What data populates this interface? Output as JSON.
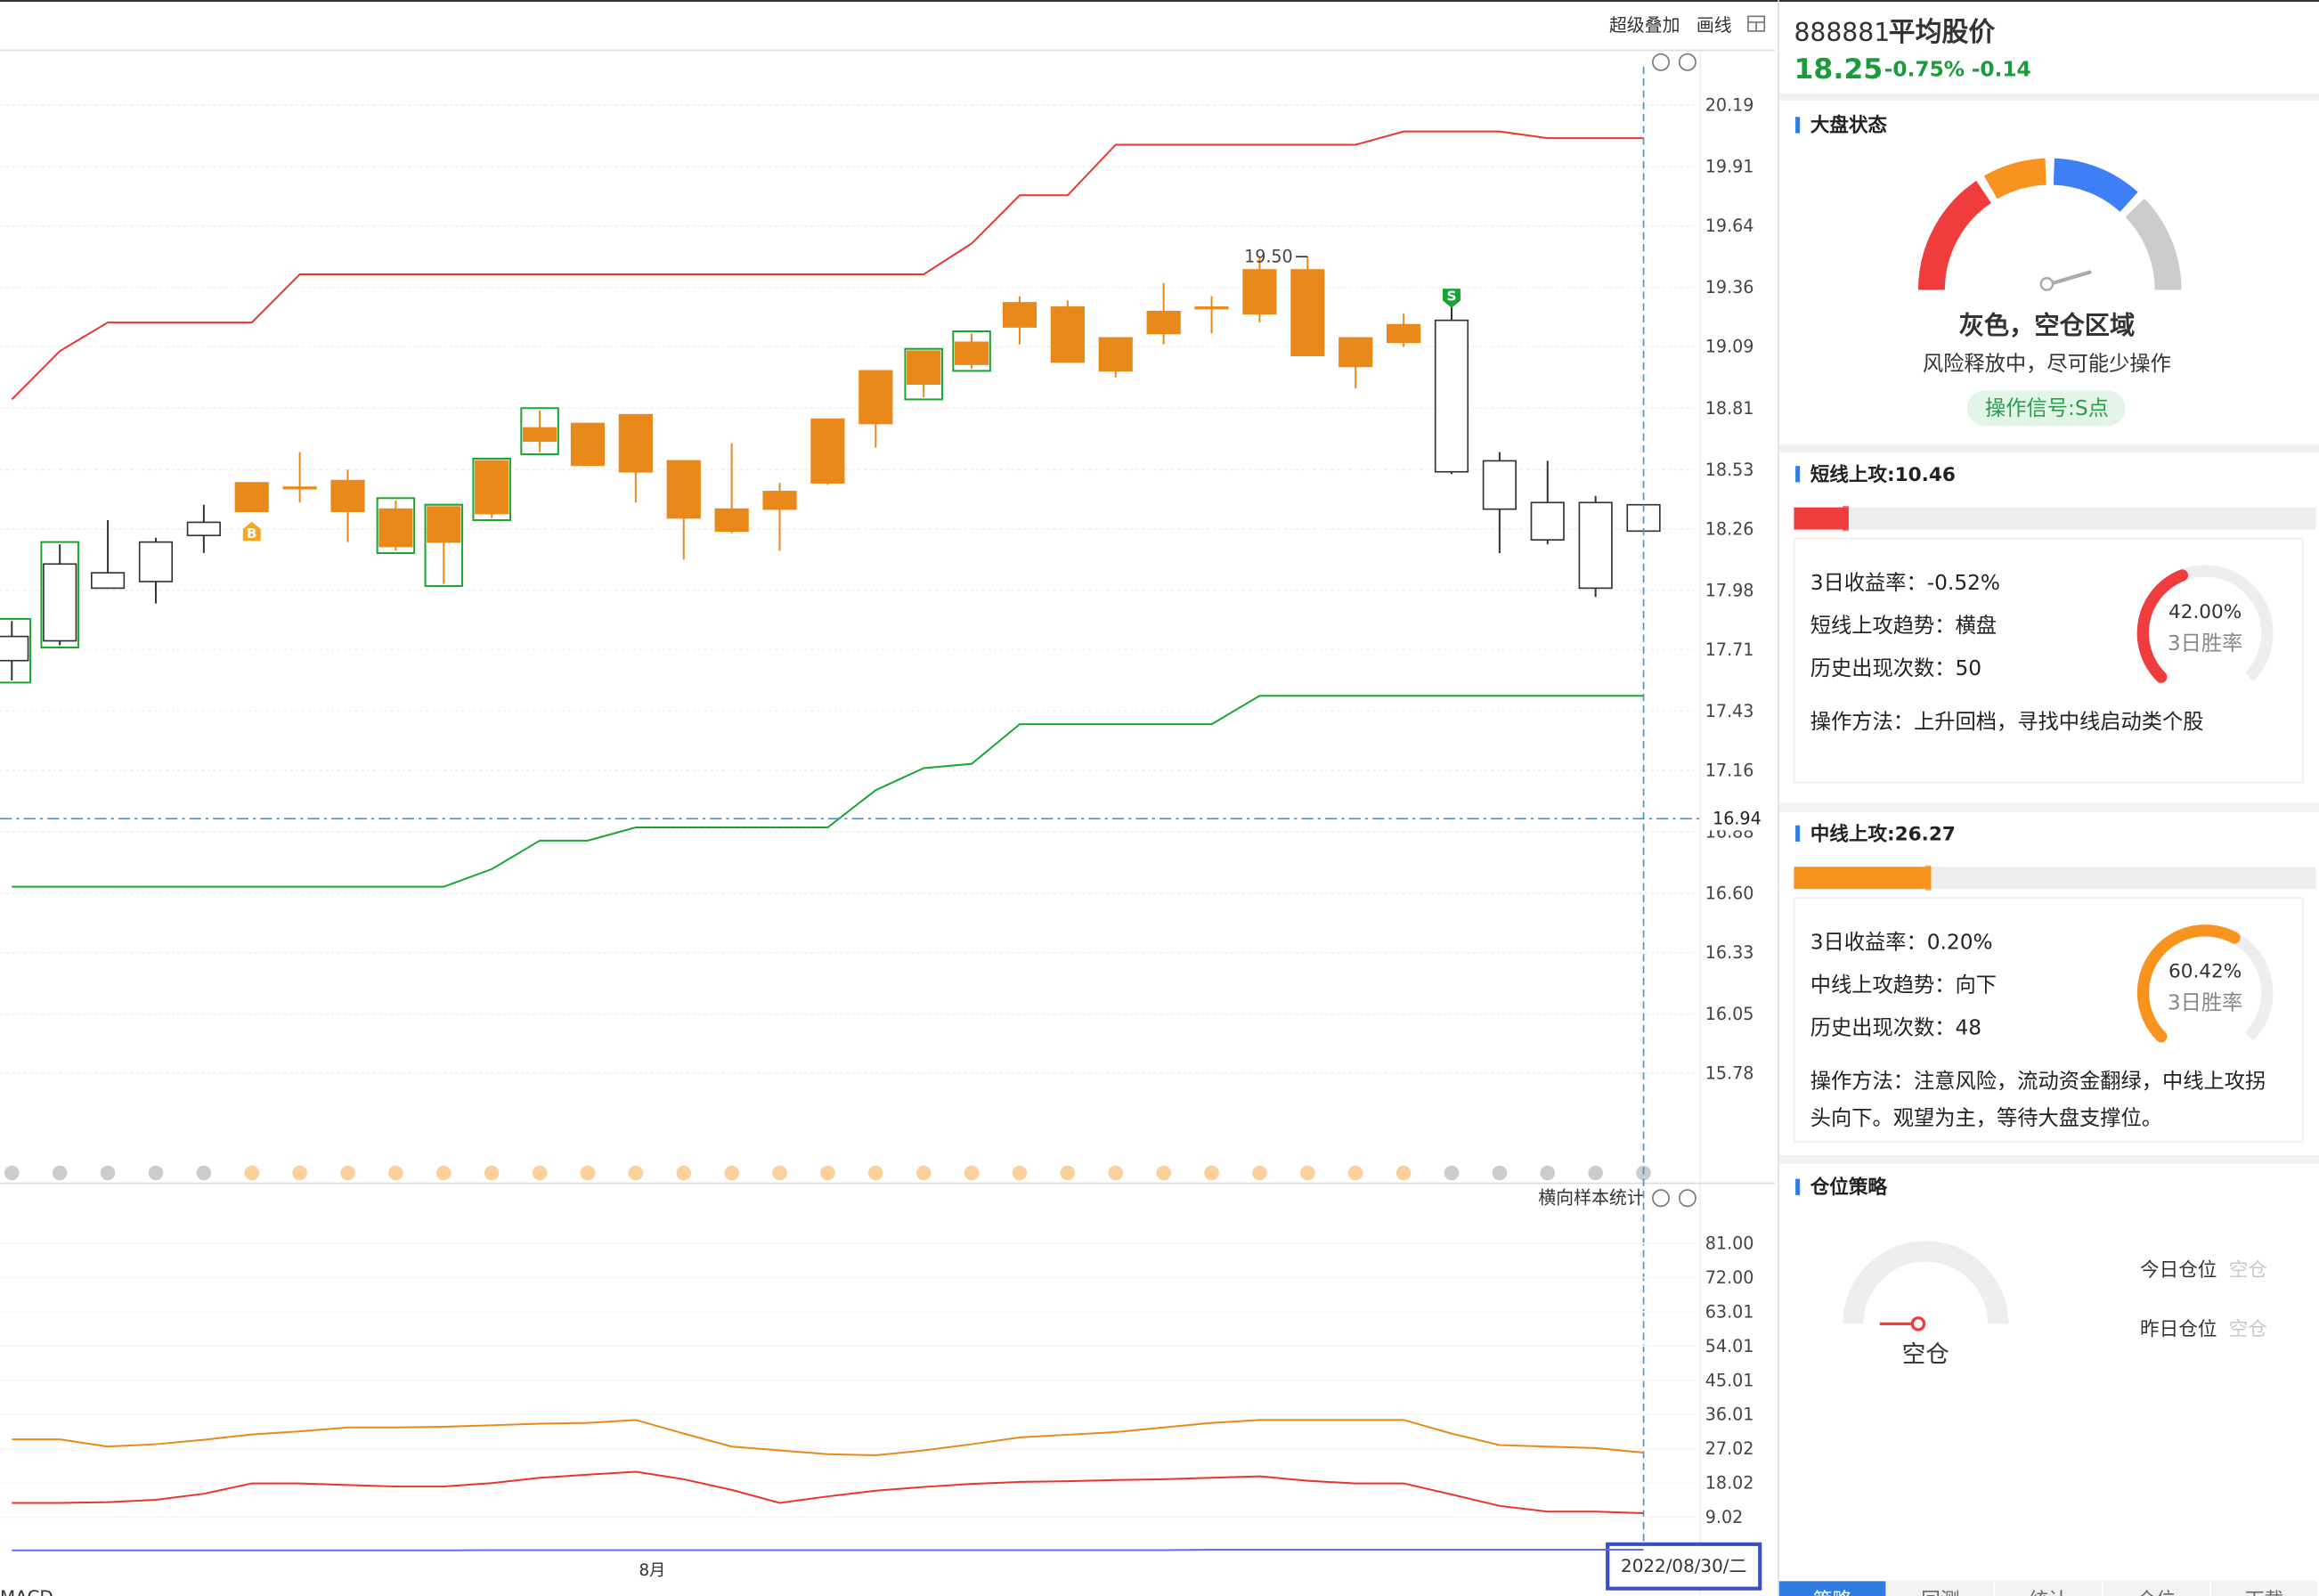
{
  "toolbar": {
    "overlay": "超级叠加",
    "draw": "画线"
  },
  "chart_data": [
    {
      "type": "candlestick",
      "open": [
        17.66,
        17.75,
        17.99,
        18.02,
        18.23,
        18.47,
        18.45,
        18.48,
        18.35,
        18.36,
        18.57,
        18.72,
        18.74,
        18.78,
        18.57,
        18.35,
        18.43,
        18.76,
        18.98,
        19.07,
        19.11,
        19.29,
        19.27,
        19.13,
        19.25,
        19.27,
        19.44,
        19.44,
        19.13,
        19.19,
        19.21,
        18.57,
        18.38,
        17.99,
        18.37
      ],
      "high": [
        17.84,
        18.19,
        18.3,
        18.22,
        18.37,
        18.47,
        18.61,
        18.53,
        18.39,
        18.36,
        18.57,
        18.8,
        18.74,
        18.78,
        18.57,
        18.65,
        18.47,
        18.76,
        18.98,
        19.07,
        19.15,
        19.32,
        19.3,
        19.13,
        19.38,
        19.32,
        19.5,
        19.5,
        19.13,
        19.24,
        19.28,
        18.61,
        18.57,
        18.41,
        18.37
      ],
      "low": [
        17.57,
        17.73,
        17.99,
        17.92,
        18.15,
        18.34,
        18.38,
        18.2,
        18.16,
        18.01,
        18.31,
        18.61,
        18.55,
        18.38,
        18.12,
        18.24,
        18.16,
        18.46,
        18.63,
        18.86,
        18.99,
        19.1,
        19.02,
        18.95,
        19.1,
        19.15,
        19.2,
        19.05,
        18.9,
        19.09,
        18.51,
        18.15,
        18.19,
        17.95,
        18.25
      ],
      "close": [
        17.77,
        18.1,
        18.06,
        18.2,
        18.29,
        18.34,
        18.45,
        18.34,
        18.18,
        18.2,
        18.33,
        18.66,
        18.55,
        18.52,
        18.31,
        18.25,
        18.35,
        18.47,
        18.74,
        18.92,
        19.01,
        19.18,
        19.02,
        18.98,
        19.15,
        19.27,
        19.24,
        19.05,
        19.0,
        19.11,
        18.52,
        18.35,
        18.21,
        18.38,
        18.25
      ],
      "candle_colors": [
        "#ffffff",
        "#ffffff",
        "#ffffff",
        "#ffffff",
        "#ffffff",
        "#e8891a",
        "#e8891a",
        "#e8891a",
        "#e8891a",
        "#e8891a",
        "#e8891a",
        "#e8891a",
        "#e8891a",
        "#e8891a",
        "#e8891a",
        "#e8891a",
        "#e8891a",
        "#e8891a",
        "#e8891a",
        "#e8891a",
        "#e8891a",
        "#e8891a",
        "#e8891a",
        "#e8891a",
        "#e8891a",
        "#e8891a",
        "#e8891a",
        "#e8891a",
        "#e8891a",
        "#e8891a",
        "#ffffff",
        "#ffffff",
        "#ffffff",
        "#ffffff",
        "#ffffff"
      ],
      "boxed": [
        true,
        true,
        false,
        false,
        false,
        false,
        false,
        false,
        true,
        true,
        true,
        true,
        false,
        false,
        false,
        false,
        false,
        false,
        false,
        true,
        true,
        false,
        false,
        false,
        false,
        false,
        false,
        false,
        false,
        false,
        false,
        false,
        false,
        false,
        false
      ],
      "dot_colors": [
        "#cccccc",
        "#cccccc",
        "#cccccc",
        "#cccccc",
        "#cccccc",
        "#fcd09b",
        "#fcd09b",
        "#fcd09b",
        "#fcd09b",
        "#fcd09b",
        "#fcd09b",
        "#fcd09b",
        "#fcd09b",
        "#fcd09b",
        "#fcd09b",
        "#fcd09b",
        "#fcd09b",
        "#fcd09b",
        "#fcd09b",
        "#fcd09b",
        "#fcd09b",
        "#fcd09b",
        "#fcd09b",
        "#fcd09b",
        "#fcd09b",
        "#fcd09b",
        "#fcd09b",
        "#fcd09b",
        "#fcd09b",
        "#fcd09b",
        "#cccccc",
        "#cccccc",
        "#cccccc",
        "#cccccc",
        "#cccccc"
      ],
      "bands": [
        {
          "color": "#e8352f",
          "values": [
            18.85,
            19.07,
            19.2,
            19.2,
            19.2,
            19.2,
            19.42,
            19.42,
            19.42,
            19.42,
            19.42,
            19.42,
            19.42,
            19.42,
            19.42,
            19.42,
            19.42,
            19.42,
            19.42,
            19.42,
            19.56,
            19.78,
            19.78,
            20.01,
            20.01,
            20.01,
            20.01,
            20.01,
            20.01,
            20.07,
            20.07,
            20.07,
            20.04,
            20.04,
            20.04
          ]
        },
        {
          "color": "#1aa532",
          "values": [
            16.63,
            16.63,
            16.63,
            16.63,
            16.63,
            16.63,
            16.63,
            16.63,
            16.63,
            16.63,
            16.71,
            16.84,
            16.84,
            16.9,
            16.9,
            16.9,
            16.9,
            16.9,
            17.07,
            17.17,
            17.19,
            17.37,
            17.37,
            17.37,
            17.37,
            17.37,
            17.5,
            17.5,
            17.5,
            17.5,
            17.5,
            17.5,
            17.5,
            17.5,
            17.5
          ]
        }
      ],
      "ylim": [
        15.38,
        20.44
      ],
      "yticks": [
        20.19,
        19.91,
        19.64,
        19.36,
        19.09,
        18.81,
        18.53,
        18.26,
        17.98,
        17.71,
        17.43,
        17.16,
        16.88,
        {
          "value": 16.6,
          "label": "16.60"
        },
        16.33,
        16.05,
        15.78
      ],
      "reference_line": 16.94,
      "peak_label": {
        "value": 19.5,
        "label": "19.50"
      },
      "signals": [
        {
          "index": 5,
          "label": "B",
          "color": "#f5a623"
        },
        {
          "index": 30,
          "label": "S",
          "color": "#1aa532"
        }
      ],
      "month_label": "8月",
      "cursor_label": "2022/08/30/二"
    },
    {
      "type": "line",
      "title": "横向样本统计",
      "series": [
        {
          "color": "#e8891a",
          "values": [
            29.5,
            29.5,
            27.6,
            28.2,
            29.4,
            30.8,
            31.6,
            32.6,
            32.6,
            32.8,
            33.2,
            33.6,
            33.8,
            34.6,
            31.0,
            27.6,
            26.6,
            25.6,
            25.3,
            26.6,
            28.2,
            30.0,
            30.7,
            31.4,
            32.6,
            33.8,
            34.6,
            34.6,
            34.6,
            34.6,
            31.0,
            28.0,
            27.6,
            27.2,
            26.0
          ]
        },
        {
          "color": "#e8352f",
          "values": [
            12.8,
            12.8,
            13.0,
            13.6,
            15.2,
            17.9,
            17.9,
            17.5,
            17.1,
            17.1,
            18.0,
            19.4,
            20.2,
            21.0,
            19.0,
            16.2,
            12.8,
            14.5,
            16.0,
            17.0,
            17.8,
            18.3,
            18.5,
            18.8,
            19.0,
            19.4,
            19.8,
            18.6,
            17.9,
            17.9,
            15.0,
            12.0,
            10.5,
            10.5,
            10.1
          ]
        },
        {
          "color": "#6a6af0",
          "values": [
            0.3,
            0.3,
            0.3,
            0.3,
            0.3,
            0.3,
            0.3,
            0.3,
            0.3,
            0.3,
            0.4,
            0.4,
            0.4,
            0.4,
            0.4,
            0.4,
            0.4,
            0.4,
            0.4,
            0.4,
            0.4,
            0.4,
            0.4,
            0.4,
            0.4,
            0.5,
            0.5,
            0.5,
            0.5,
            0.5,
            0.5,
            0.5,
            0.5,
            0.5,
            0.5
          ]
        }
      ],
      "ylim": [
        0,
        89
      ],
      "yticks": [
        {
          "value": 81,
          "label": "81.00"
        },
        {
          "value": 72,
          "label": "72.00"
        },
        63.01,
        54.01,
        45.01,
        36.01,
        27.02,
        18.02,
        9.02
      ],
      "footer": "MACD"
    }
  ],
  "quote": {
    "code": "888881",
    "name": "平均股价",
    "price": "18.25",
    "change_pct": "-0.75%",
    "change": "-0.14"
  },
  "panel": {
    "market": {
      "title": "大盘状态",
      "status": "灰色，空仓区域",
      "advice": "风险释放中，尽可能少操作",
      "signal": "操作信号:S点",
      "segment_colors": [
        "#f03c3c",
        "#f7931e",
        "#3f7ff5",
        "#cccccc"
      ]
    },
    "short": {
      "title": "短线上攻:",
      "score": 10.46,
      "color": "#f03c3c",
      "lines": [
        "3日收益率：-0.52%",
        "短线上攻趋势：横盘",
        "历史出现次数：50",
        "操作方法：上升回档，寻找中线启动类个股"
      ],
      "win_rate": {
        "value": 42,
        "label": "42.00%"
      },
      "win_rate_title": "3日胜率"
    },
    "mid": {
      "title": "中线上攻:",
      "score": 26.27,
      "color": "#f7931e",
      "lines": [
        "3日收益率：0.20%",
        "中线上攻趋势：向下",
        "历史出现次数：48",
        "操作方法：注意风险，流动资金翻绿，中线上攻拐",
        "头向下。观望为主，等待大盘支撑位。"
      ],
      "win_rate": {
        "value": 60.42,
        "label": "60.42%"
      },
      "win_rate_title": "3日胜率"
    },
    "position": {
      "title": "仓位策略",
      "state": "空仓",
      "today": "今日仓位",
      "today_value": "空仓",
      "yesterday": "昨日仓位",
      "yesterday_value": "空仓"
    },
    "tabs": [
      "策略",
      "回测",
      "统计",
      "仓位",
      "下载"
    ]
  }
}
